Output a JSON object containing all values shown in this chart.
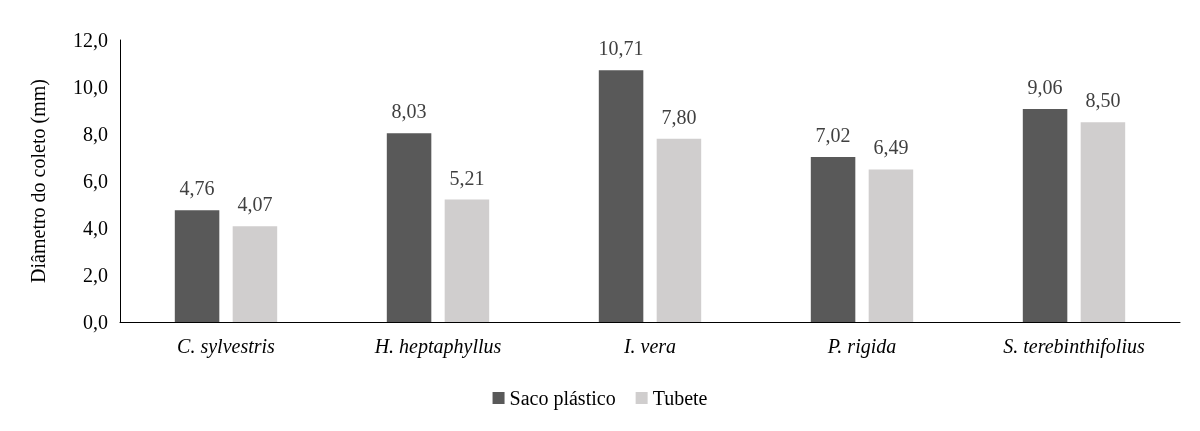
{
  "chart_data": {
    "type": "bar",
    "ylabel": "Diâmetro do coleto (mm)",
    "categories": [
      "C. sylvestris",
      "H. heptaphyllus",
      "I. vera",
      "P. rigida",
      "S. terebinthifolius"
    ],
    "series": [
      {
        "name": "Saco plástico",
        "color": "#595959",
        "values": [
          4.76,
          8.03,
          10.71,
          7.02,
          9.06
        ],
        "value_labels": [
          "4,76",
          "8,03",
          "10,71",
          "7,02",
          "9,06"
        ]
      },
      {
        "name": "Tubete",
        "color": "#d0cece",
        "values": [
          4.07,
          5.21,
          7.8,
          6.49,
          8.5
        ],
        "value_labels": [
          "4,07",
          "5,21",
          "7,80",
          "6,49",
          "8,50"
        ]
      }
    ],
    "ylim": [
      0,
      12
    ],
    "yticks": [
      {
        "value": 0,
        "label": "0,0"
      },
      {
        "value": 2,
        "label": "2,0"
      },
      {
        "value": 4,
        "label": "4,0"
      },
      {
        "value": 6,
        "label": "6,0"
      },
      {
        "value": 8,
        "label": "8,0"
      },
      {
        "value": 10,
        "label": "10,0"
      },
      {
        "value": 12,
        "label": "12,0"
      }
    ],
    "grid": false,
    "legend": "bottom"
  }
}
